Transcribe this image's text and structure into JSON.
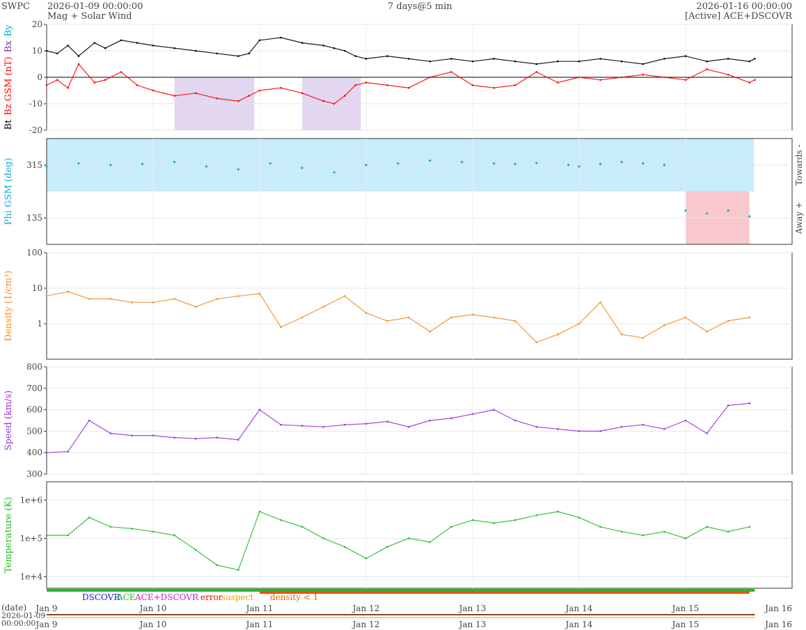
{
  "header": {
    "source": "SWPC",
    "start": "2026-01-09 00:00:00",
    "product": "Mag + Solar Wind",
    "resolution": "7 days@5 min",
    "end": "2026-01-16 00:00:00",
    "status": "[Active] ACE+DSCOVR"
  },
  "chart_data": [
    {
      "type": "line",
      "panel": "mag",
      "ylabels": [
        "Bt",
        "Bz GSM (nT)",
        "Bx",
        "By"
      ],
      "ylabel_colors": [
        "#000000",
        "#ff0000",
        "#7030a0",
        "#00aadd"
      ],
      "ylim": [
        -20,
        20
      ],
      "yticks": [
        -20,
        -10,
        0,
        10,
        20
      ],
      "series": [
        {
          "name": "Bt",
          "color": "#000000",
          "x": [
            0,
            0.1,
            0.2,
            0.3,
            0.45,
            0.55,
            0.7,
            0.85,
            1.0,
            1.2,
            1.4,
            1.6,
            1.8,
            1.9,
            2.0,
            2.2,
            2.4,
            2.6,
            2.7,
            2.8,
            2.9,
            3.0,
            3.2,
            3.4,
            3.6,
            3.8,
            4.0,
            4.2,
            4.4,
            4.6,
            4.8,
            5.0,
            5.2,
            5.4,
            5.6,
            5.8,
            6.0,
            6.2,
            6.4,
            6.6,
            6.65
          ],
          "values": [
            10,
            9,
            12,
            8,
            13,
            11,
            14,
            13,
            12,
            11,
            10,
            9,
            8,
            9,
            14,
            15,
            13,
            12,
            11,
            10,
            8,
            7,
            8,
            7,
            6,
            7,
            6,
            7,
            6,
            5,
            6,
            6,
            7,
            6,
            5,
            7,
            8,
            6,
            7,
            6,
            7
          ]
        },
        {
          "name": "Bz GSM",
          "color": "#ff0000",
          "x": [
            0,
            0.1,
            0.2,
            0.3,
            0.45,
            0.55,
            0.7,
            0.85,
            1.0,
            1.2,
            1.4,
            1.6,
            1.8,
            1.9,
            2.0,
            2.2,
            2.4,
            2.6,
            2.7,
            2.8,
            2.9,
            3.0,
            3.2,
            3.4,
            3.6,
            3.8,
            4.0,
            4.2,
            4.4,
            4.6,
            4.8,
            5.0,
            5.2,
            5.4,
            5.6,
            5.8,
            6.0,
            6.2,
            6.4,
            6.6,
            6.65
          ],
          "values": [
            -3,
            -1,
            -4,
            5,
            -2,
            -1,
            2,
            -3,
            -5,
            -7,
            -6,
            -8,
            -9,
            -7,
            -5,
            -4,
            -6,
            -9,
            -10,
            -7,
            -3,
            -2,
            -3,
            -4,
            0,
            2,
            -3,
            -4,
            -3,
            2,
            -2,
            0,
            -1,
            0,
            1,
            0,
            -1,
            3,
            1,
            -2,
            -1
          ]
        }
      ]
    },
    {
      "type": "scatter",
      "panel": "phi",
      "ylabel": "Phi GSM (deg)",
      "right_labels": [
        "Towards -",
        "Away +"
      ],
      "ylim": [
        45,
        405
      ],
      "yticks": [
        135,
        315
      ],
      "series": [
        {
          "name": "Phi GSM",
          "color": "#1aa8d8",
          "x": [
            0,
            0.3,
            0.6,
            0.9,
            1.2,
            1.5,
            1.8,
            2.1,
            2.4,
            2.7,
            3.0,
            3.3,
            3.6,
            3.9,
            4.2,
            4.4,
            4.6,
            4.9,
            5.0,
            5.2,
            5.4,
            5.6,
            5.8,
            6.0,
            6.2,
            6.4,
            6.6
          ],
          "values": [
            310,
            320,
            315,
            318,
            325,
            310,
            300,
            320,
            305,
            290,
            315,
            320,
            330,
            325,
            320,
            318,
            322,
            315,
            310,
            318,
            325,
            320,
            315,
            160,
            150,
            160,
            140
          ]
        }
      ]
    },
    {
      "type": "line",
      "panel": "density",
      "ylabel": "Density (1/cm³)",
      "scale": "log",
      "ylim": [
        0.1,
        100
      ],
      "yticks": [
        1,
        10,
        100
      ],
      "series": [
        {
          "name": "Density",
          "color": "#f28c28",
          "x": [
            0,
            0.2,
            0.4,
            0.6,
            0.8,
            1.0,
            1.2,
            1.4,
            1.6,
            1.8,
            2.0,
            2.2,
            2.4,
            2.6,
            2.8,
            3.0,
            3.2,
            3.4,
            3.6,
            3.8,
            4.0,
            4.2,
            4.4,
            4.6,
            4.8,
            5.0,
            5.2,
            5.4,
            5.6,
            5.8,
            6.0,
            6.2,
            6.4,
            6.6
          ],
          "values": [
            6,
            8,
            5,
            5,
            4,
            4,
            5,
            3,
            5,
            6,
            7,
            0.8,
            1.5,
            3,
            6,
            2,
            1.2,
            1.5,
            0.6,
            1.5,
            1.8,
            1.5,
            1.2,
            0.3,
            0.5,
            1,
            4,
            0.5,
            0.4,
            0.9,
            1.5,
            0.6,
            1.2,
            1.5
          ]
        }
      ]
    },
    {
      "type": "line",
      "panel": "speed",
      "ylabel": "Speed (km/s)",
      "ylim": [
        300,
        800
      ],
      "yticks": [
        300,
        400,
        500,
        600,
        700,
        800
      ],
      "series": [
        {
          "name": "Speed",
          "color": "#9b30d9",
          "x": [
            0,
            0.2,
            0.4,
            0.6,
            0.8,
            1.0,
            1.2,
            1.4,
            1.6,
            1.8,
            2.0,
            2.2,
            2.4,
            2.6,
            2.8,
            3.0,
            3.2,
            3.4,
            3.6,
            3.8,
            4.0,
            4.2,
            4.4,
            4.6,
            4.8,
            5.0,
            5.2,
            5.4,
            5.6,
            5.8,
            6.0,
            6.2,
            6.4,
            6.6
          ],
          "values": [
            400,
            405,
            550,
            490,
            480,
            480,
            470,
            465,
            470,
            460,
            600,
            530,
            525,
            520,
            530,
            535,
            545,
            520,
            550,
            560,
            580,
            600,
            550,
            520,
            510,
            500,
            500,
            520,
            530,
            510,
            550,
            490,
            620,
            630
          ]
        }
      ]
    },
    {
      "type": "line",
      "panel": "temperature",
      "ylabel": "Temperature (K)",
      "scale": "log",
      "ylim": [
        5000,
        3000000
      ],
      "yticks": [
        10000,
        100000,
        1000000
      ],
      "ytick_labels": [
        "1e+4",
        "1e+5",
        "1e+6"
      ],
      "series": [
        {
          "name": "Temperature",
          "color": "#22bb22",
          "x": [
            0,
            0.2,
            0.4,
            0.6,
            0.8,
            1.0,
            1.2,
            1.4,
            1.6,
            1.8,
            2.0,
            2.2,
            2.4,
            2.6,
            2.8,
            3.0,
            3.2,
            3.4,
            3.6,
            3.8,
            4.0,
            4.2,
            4.4,
            4.6,
            4.8,
            5.0,
            5.2,
            5.4,
            5.6,
            5.8,
            6.0,
            6.2,
            6.4,
            6.6
          ],
          "values": [
            120000,
            120000,
            350000,
            200000,
            180000,
            150000,
            120000,
            50000,
            20000,
            15000,
            500000,
            300000,
            200000,
            100000,
            60000,
            30000,
            60000,
            100000,
            80000,
            200000,
            300000,
            250000,
            300000,
            400000,
            500000,
            350000,
            200000,
            150000,
            120000,
            150000,
            100000,
            200000,
            150000,
            200000
          ]
        }
      ]
    }
  ],
  "legend": {
    "dscovr": "DSCOVR",
    "ace": "ACE",
    "both": "ACE+DSCOVR",
    "error": "error",
    "suspect": "suspect",
    "density": "density < 1"
  },
  "xaxis": {
    "ticks": [
      "Jan 9",
      "Jan 10",
      "Jan 11",
      "Jan 12",
      "Jan 13",
      "Jan 14",
      "Jan 15",
      "Jan 16"
    ],
    "date_label": "(date)",
    "timeline_start_date": "2026-01-09",
    "timeline_start_time": "00:00:00"
  }
}
